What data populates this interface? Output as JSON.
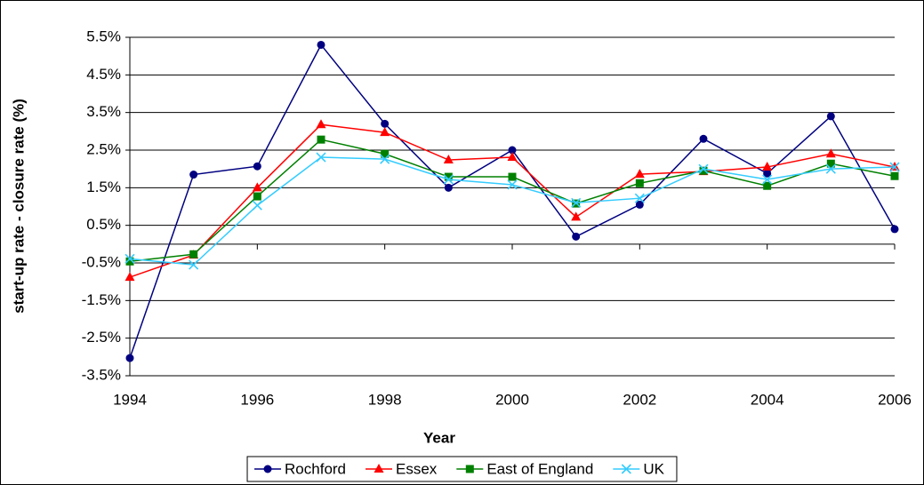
{
  "chart_data": {
    "type": "line",
    "x_label": "Year",
    "y_label": "start-up rate - closure rate (%)",
    "x": [
      1994,
      1995,
      1996,
      1997,
      1998,
      1999,
      2000,
      2001,
      2002,
      2003,
      2004,
      2005,
      2006
    ],
    "xlim": [
      1994,
      2006
    ],
    "xticks": [
      1994,
      1996,
      1998,
      2000,
      2002,
      2004,
      2006
    ],
    "ylim": [
      -3.5,
      5.5
    ],
    "yticks": [
      {
        "value": -3.5,
        "label": "-3.5%"
      },
      {
        "value": -2.5,
        "label": "-2.5%"
      },
      {
        "value": -1.5,
        "label": "-1.5%"
      },
      {
        "value": -0.5,
        "label": "-0.5%"
      },
      {
        "value": 0.5,
        "label": "0.5%"
      },
      {
        "value": 1.5,
        "label": "1.5%"
      },
      {
        "value": 2.5,
        "label": "2.5%"
      },
      {
        "value": 3.5,
        "label": "3.5%"
      },
      {
        "value": 4.5,
        "label": "4.5%"
      },
      {
        "value": 5.5,
        "label": "5.5%"
      }
    ],
    "grid": true,
    "legend": "bottom",
    "series": [
      {
        "name": "Rochford",
        "color": "#000080",
        "marker": "circle",
        "values": [
          -3.03,
          1.85,
          2.07,
          5.3,
          3.2,
          1.5,
          2.5,
          0.2,
          1.05,
          2.8,
          1.88,
          3.4,
          0.4
        ]
      },
      {
        "name": "Essex",
        "color": "#ff0000",
        "marker": "triangle",
        "values": [
          -0.88,
          -0.29,
          1.5,
          3.18,
          2.97,
          2.24,
          2.31,
          0.72,
          1.86,
          1.93,
          2.05,
          2.4,
          2.05
        ]
      },
      {
        "name": "East of England",
        "color": "#008000",
        "marker": "square",
        "values": [
          -0.46,
          -0.27,
          1.27,
          2.78,
          2.4,
          1.79,
          1.79,
          1.08,
          1.62,
          1.95,
          1.55,
          2.14,
          1.81
        ]
      },
      {
        "name": "UK",
        "color": "#33ccff",
        "marker": "x",
        "values": [
          -0.39,
          -0.55,
          1.03,
          2.31,
          2.26,
          1.72,
          1.58,
          1.1,
          1.22,
          2.0,
          1.72,
          2.0,
          2.05
        ]
      }
    ]
  }
}
